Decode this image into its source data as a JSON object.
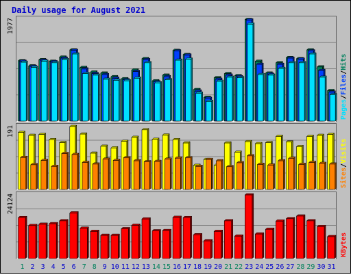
{
  "colors": {
    "background": "#C0C0C0",
    "title": "#0000CC",
    "hits": "#00805C",
    "files": "#0040FF",
    "pages": "#00E0FF",
    "visits": "#FFFF00",
    "sites": "#FF8000",
    "kbytes": "#FF0000",
    "weekend_label": "#00805C",
    "weekday_label": "#0000CC"
  },
  "chart_data": {
    "title": "Daily usage for August 2021",
    "type": "bar",
    "days": [
      "1",
      "2",
      "3",
      "4",
      "5",
      "6",
      "7",
      "8",
      "9",
      "10",
      "11",
      "12",
      "13",
      "14",
      "15",
      "16",
      "17",
      "18",
      "19",
      "20",
      "21",
      "22",
      "23",
      "24",
      "25",
      "26",
      "27",
      "28",
      "29",
      "30",
      "31"
    ],
    "weekend_days": [
      "1",
      "7",
      "8",
      "14",
      "15",
      "21",
      "22",
      "28",
      "29"
    ],
    "panels": [
      {
        "id": "hits",
        "max_label": "1977",
        "ymax": 1977,
        "series": [
          {
            "name": "Hits",
            "values": [
              1170,
              1070,
              1190,
              1160,
              1240,
              1380,
              1040,
              950,
              930,
              860,
              820,
              990,
              1210,
              780,
              890,
              1370,
              1290,
              610,
              460,
              840,
              920,
              880,
              1970,
              1160,
              930,
              1130,
              1230,
              1210,
              1380,
              1050,
              590
            ]
          },
          {
            "name": "Files",
            "values": [
              1160,
              1060,
              1180,
              1150,
              1220,
              1370,
              1010,
              920,
              900,
              830,
              800,
              960,
              1190,
              760,
              860,
              1360,
              1280,
              580,
              440,
              810,
              890,
              860,
              1960,
              1100,
              910,
              1100,
              1220,
              1200,
              1360,
              980,
              560
            ]
          },
          {
            "name": "Pages",
            "values": [
              1140,
              1040,
              1160,
              1130,
              1190,
              1300,
              920,
              890,
              810,
              790,
              780,
              830,
              1130,
              740,
              800,
              1180,
              1200,
              540,
              380,
              770,
              850,
              840,
              1880,
              900,
              890,
              1020,
              1130,
              1130,
              1300,
              850,
              510
            ]
          }
        ],
        "legend": [
          "Pages",
          "Files",
          "Hits"
        ]
      },
      {
        "id": "visits",
        "max_label": "191",
        "ymax": 191,
        "series": [
          {
            "name": "Visits",
            "values": [
              173,
              164,
              167,
              151,
              142,
              191,
              168,
              110,
              131,
              126,
              146,
              158,
              181,
              152,
              165,
              151,
              141,
              73,
              91,
              73,
              141,
              113,
              145,
              139,
              142,
              161,
              144,
              130,
              161,
              164,
              167
            ]
          },
          {
            "name": "Sites",
            "values": [
              97,
              75,
              88,
              70,
              109,
              106,
              82,
              77,
              92,
              88,
              96,
              87,
              84,
              85,
              92,
              95,
              96,
              70,
              91,
              87,
              69,
              81,
              102,
              76,
              74,
              87,
              94,
              76,
              82,
              79,
              77
            ]
          }
        ],
        "legend": [
          "Sites",
          "Visits"
        ]
      },
      {
        "id": "kbytes",
        "max_label": "24124",
        "ymax": 24124,
        "series": [
          {
            "name": "KBytes",
            "values": [
              15500,
              12500,
              13000,
              13200,
              14300,
              17300,
              11500,
              10300,
              8800,
              8800,
              11300,
              12600,
              15000,
              10500,
              10600,
              15600,
              15500,
              9000,
              6700,
              10300,
              14300,
              8500,
              24124,
              9300,
              11100,
              14200,
              15100,
              16100,
              14300,
              12100,
              8300
            ]
          }
        ],
        "legend": [
          "KBytes"
        ]
      }
    ]
  }
}
